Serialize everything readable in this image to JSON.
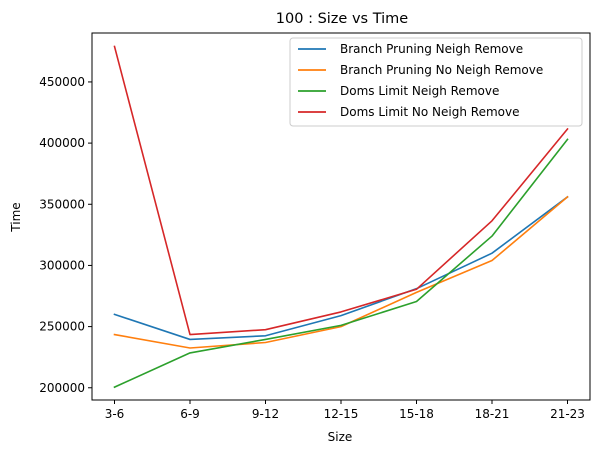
{
  "chart_data": {
    "type": "line",
    "title": "100 : Size vs Time",
    "xlabel": "Size",
    "ylabel": "Time",
    "categories": [
      "3-6",
      "6-9",
      "9-12",
      "12-15",
      "15-18",
      "18-21",
      "21-23"
    ],
    "yticks": [
      200000,
      250000,
      300000,
      350000,
      400000,
      450000
    ],
    "ylim": [
      190000,
      490000
    ],
    "grid": false,
    "legend_position": "top-right",
    "series": [
      {
        "name": "Branch Pruning Neigh Remove",
        "color": "#1f77b4",
        "values": [
          260000,
          239500,
          242500,
          259000,
          281000,
          310000,
          356000
        ]
      },
      {
        "name": "Branch Pruning No Neigh Remove",
        "color": "#ff7f0e",
        "values": [
          243500,
          232500,
          237000,
          250000,
          278000,
          304000,
          356000
        ]
      },
      {
        "name": "Doms Limit Neigh Remove",
        "color": "#2ca02c",
        "values": [
          200500,
          228500,
          239500,
          251000,
          270500,
          324000,
          403000
        ]
      },
      {
        "name": "Doms Limit No Neigh Remove",
        "color": "#d62728",
        "values": [
          479000,
          243500,
          247500,
          262000,
          280500,
          336500,
          411500
        ]
      }
    ]
  }
}
